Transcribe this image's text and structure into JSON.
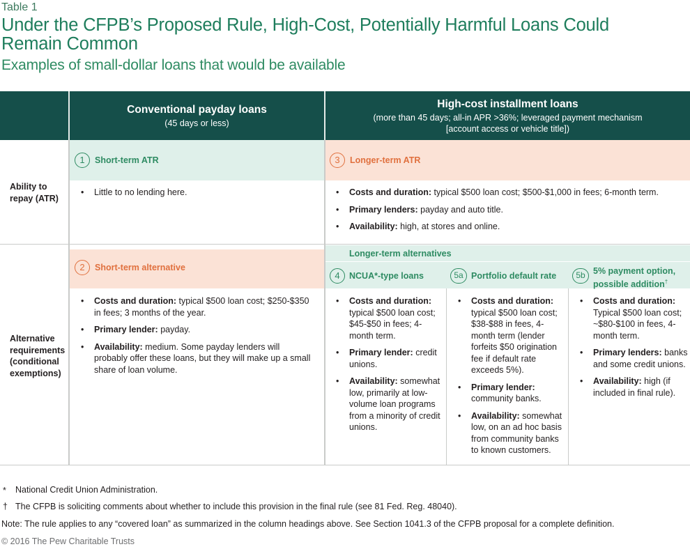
{
  "table_label": "Table 1",
  "title": "Under the CFPB’s Proposed Rule, High-Cost, Potentially Harmful Loans Could Remain Common",
  "subtitle": "Examples of small-dollar loans that would be available",
  "columns": {
    "payday": {
      "title": "Conventional payday loans",
      "sub": "(45 days or less)"
    },
    "installment": {
      "title": "High-cost installment loans",
      "sub_line1": "(more than 45 days; all-in APR >36%; leveraged payment mechanism",
      "sub_line2": "[account access or vehicle title])"
    }
  },
  "rows": {
    "atr_label": "Ability to repay (ATR)",
    "alt_label": "Alternative requirements (conditional exemptions)"
  },
  "cells": {
    "short_atr": {
      "num": "1",
      "label": "Short-term ATR",
      "items": [
        "Little to no lending here."
      ]
    },
    "longer_atr": {
      "num": "3",
      "label": "Longer-term ATR",
      "items": [
        {
          "key": "Costs and duration:",
          "text": " typical $500 loan cost; $500-$1,000 in fees; 6-month term."
        },
        {
          "key": "Primary lenders:",
          "text": " payday and auto title."
        },
        {
          "key": "Availability:",
          "text": " high, at stores and online."
        }
      ]
    },
    "short_alt": {
      "num": "2",
      "label": "Short-term alternative",
      "items": [
        {
          "key": "Costs and duration:",
          "text": " typical $500 loan cost; $250-$350 in fees; 3 months of the year."
        },
        {
          "key": "Primary lender:",
          "text": " payday."
        },
        {
          "key": "Availability:",
          "text": " medium. Some payday lenders will probably offer these loans, but they will make up a small share of loan volume."
        }
      ]
    },
    "longer_alt_heading": "Longer-term alternatives",
    "ncua": {
      "num": "4",
      "label": "NCUA*-type loans",
      "items": [
        {
          "key": "Costs and duration:",
          "text": " typical $500 loan cost; $45-$50 in fees; 4-month term."
        },
        {
          "key": "Primary lender:",
          "text": " credit unions."
        },
        {
          "key": "Availability:",
          "text": " somewhat low, primarily at low-volume loan programs from a minority of credit unions."
        }
      ]
    },
    "portfolio": {
      "num": "5a",
      "label": "Portfolio default rate",
      "items": [
        {
          "key": "Costs and duration:",
          "text": " typical $500 loan cost; $38-$88 in fees, 4-month term (lender forfeits $50 origination fee if default rate exceeds 5%)."
        },
        {
          "key": "Primary lender:",
          "text": " community banks."
        },
        {
          "key": "Availability:",
          "text": " somewhat low, on an ad hoc basis from community banks to known customers."
        }
      ]
    },
    "payment_option": {
      "num": "5b",
      "label_line1": "5% payment option,",
      "label_line2": "possible addition",
      "dagger": "†",
      "items": [
        {
          "key": "Costs and duration:",
          "text": " Typical $500 loan cost; ~$80-$100 in fees, 4-month term."
        },
        {
          "key": "Primary lenders:",
          "text": " banks and some credit unions."
        },
        {
          "key": "Availability:",
          "text": " high (if included in final rule)."
        }
      ]
    }
  },
  "footnotes": {
    "star_mark": "*",
    "star_text": "National Credit Union Administration.",
    "dagger_mark": "†",
    "dagger_text": "The CFPB is soliciting comments about whether to include this provision in the final rule (see 81 Fed. Reg. 48040).",
    "note": "Note: The rule applies to any “covered loan” as summarized in the column headings above. See Section 1041.3 of the CFPB proposal for a complete definition."
  },
  "copyright": "© 2016 The Pew Charitable Trusts",
  "colors": {
    "header_band": "#154f4a",
    "title_green": "#1e7d5c",
    "green_tint": "#dff0ea",
    "peach_tint": "#fbe2d6",
    "accent_orange": "#e0703e",
    "accent_green": "#2e8b62"
  }
}
